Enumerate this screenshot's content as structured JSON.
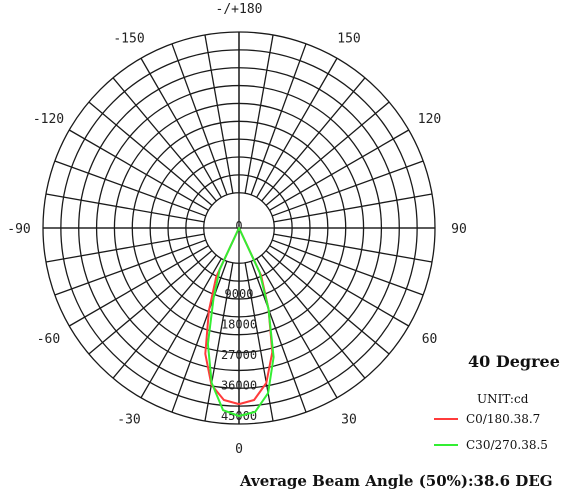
{
  "chart_data": {
    "type": "polar",
    "unit": "UNIT:cd",
    "title": "40 Degree",
    "angle_labels": [
      "-/+180",
      "150",
      "120",
      "90",
      "60",
      "30",
      "0",
      "-30",
      "-60",
      "-90",
      "-120",
      "-150"
    ],
    "radial_ticks": [
      0,
      9000,
      18000,
      27000,
      36000,
      45000
    ],
    "radial_tick_labels": [
      "0",
      "9000",
      "18000",
      "27000",
      "36000",
      "45000"
    ],
    "series": [
      {
        "name": "C0/180.38.7",
        "color": "#ff3b3b",
        "points": [
          {
            "angle": 0,
            "value": 41500
          },
          {
            "angle": 5,
            "value": 40500
          },
          {
            "angle": 10,
            "value": 36000
          },
          {
            "angle": 15,
            "value": 27500
          },
          {
            "angle": 20,
            "value": 15000
          },
          {
            "angle": 25,
            "value": 5000
          },
          {
            "angle": 30,
            "value": 0
          },
          {
            "angle": -5,
            "value": 40500
          },
          {
            "angle": -10,
            "value": 36500
          },
          {
            "angle": -15,
            "value": 28000
          },
          {
            "angle": -20,
            "value": 15500
          },
          {
            "angle": -25,
            "value": 5500
          },
          {
            "angle": -30,
            "value": 0
          }
        ]
      },
      {
        "name": "C30/270.38.5",
        "color": "#33ee33",
        "points": [
          {
            "angle": 0,
            "value": 45000
          },
          {
            "angle": 5,
            "value": 44000
          },
          {
            "angle": 10,
            "value": 39000
          },
          {
            "angle": 15,
            "value": 29000
          },
          {
            "angle": 20,
            "value": 15000
          },
          {
            "angle": 25,
            "value": 4000
          },
          {
            "angle": 30,
            "value": 0
          },
          {
            "angle": -5,
            "value": 43500
          },
          {
            "angle": -10,
            "value": 36000
          },
          {
            "angle": -15,
            "value": 25000
          },
          {
            "angle": -20,
            "value": 11500
          },
          {
            "angle": -25,
            "value": 3000
          },
          {
            "angle": -30,
            "value": 0
          }
        ]
      }
    ],
    "beam_angle_text": "Average Beam Angle (50%):38.6 DEG"
  }
}
